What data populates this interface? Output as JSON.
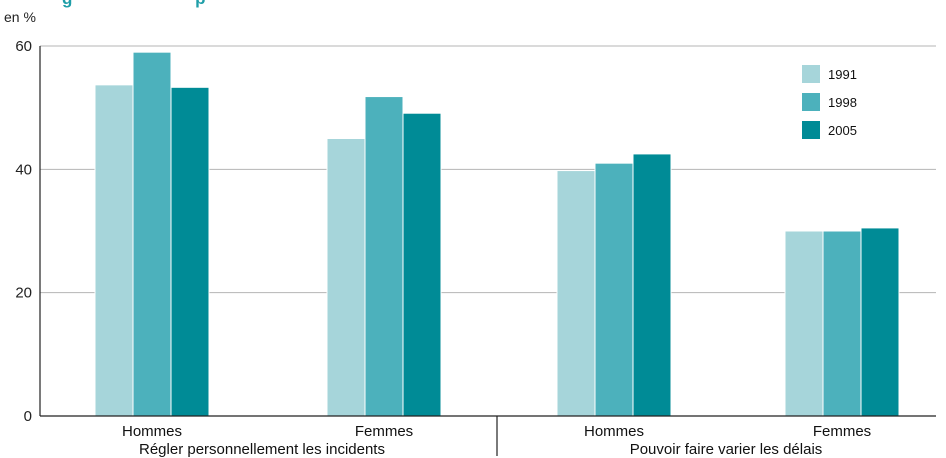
{
  "chart_data": {
    "type": "bar",
    "title_fragment": "g                          p",
    "ylabel": "en %",
    "ylim": [
      0,
      60
    ],
    "yticks": [
      0,
      20,
      40,
      60
    ],
    "grid": true,
    "legend_position": "top-right",
    "groups": [
      {
        "label": "Régler personnellement les incidents",
        "categories": [
          "Hommes",
          "Femmes"
        ]
      },
      {
        "label": "Pouvoir faire varier les délais",
        "categories": [
          "Hommes",
          "Femmes"
        ]
      }
    ],
    "categories": [
      "Hommes",
      "Femmes",
      "Hommes",
      "Femmes"
    ],
    "series": [
      {
        "name": "1991",
        "color": "#a6d5da",
        "values": [
          53.7,
          45.0,
          39.8,
          30.0
        ]
      },
      {
        "name": "1998",
        "color": "#4cb1bc",
        "values": [
          59.0,
          51.8,
          41.0,
          30.0
        ]
      },
      {
        "name": "2005",
        "color": "#008b96",
        "values": [
          53.3,
          49.1,
          42.5,
          30.5
        ]
      }
    ]
  }
}
